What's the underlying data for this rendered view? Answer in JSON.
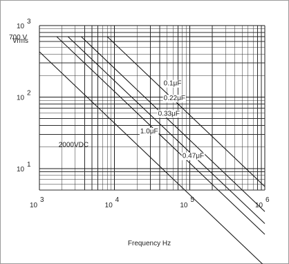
{
  "chart_data": {
    "type": "line",
    "x_scale": "log",
    "y_scale": "log",
    "xlim": [
      1000,
      1000000
    ],
    "ylim": [
      5,
      1000
    ],
    "grid": true,
    "ylabel": "Vrms",
    "xlabel": "Frequency  Hz",
    "x_ticks": [
      {
        "value": 1000,
        "base": "10",
        "exp": "3"
      },
      {
        "value": 10000,
        "base": "10",
        "exp": "4"
      },
      {
        "value": 100000,
        "base": "10",
        "exp": "5"
      },
      {
        "value": 1000000,
        "base": "10",
        "exp": "6"
      }
    ],
    "y_ticks": [
      {
        "value": 10,
        "base": "10",
        "exp": "1"
      },
      {
        "value": 100,
        "base": "10",
        "exp": "2"
      },
      {
        "value": 1000,
        "base": "10",
        "exp": "3"
      }
    ],
    "plateau_label": "700 V",
    "plateau_value": 700,
    "series": [
      {
        "name": "0.1μF",
        "points": [
          [
            1000,
            700
          ],
          [
            8000,
            700
          ],
          [
            1000000,
            5.6
          ]
        ],
        "label_at": [
          45000,
          145
        ]
      },
      {
        "name": "0.22μF",
        "points": [
          [
            1000,
            700
          ],
          [
            3600,
            700
          ],
          [
            1000000,
            2.5
          ]
        ],
        "label_at": [
          45000,
          90
        ]
      },
      {
        "name": "0.33μF",
        "points": [
          [
            1000,
            700
          ],
          [
            2400,
            700
          ],
          [
            1000000,
            1.7
          ]
        ],
        "label_at": [
          38000,
          55
        ]
      },
      {
        "name": "1.0μF",
        "points": [
          [
            1000,
            430
          ],
          [
            1000000,
            0.43
          ]
        ],
        "label_at": [
          22000,
          31
        ]
      },
      {
        "name": "0.47μF",
        "points": [
          [
            1000,
            700
          ],
          [
            1700,
            700
          ],
          [
            1000000,
            1.2
          ]
        ],
        "label_at": [
          80000,
          14
        ]
      }
    ],
    "annotations": [
      {
        "text": "2000VDC",
        "x": 1800,
        "y": 20
      }
    ]
  }
}
